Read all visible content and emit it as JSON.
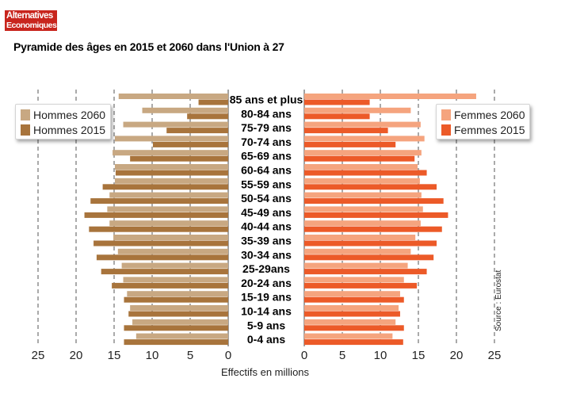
{
  "logo": {
    "line1": "Alternatives",
    "line2": "Economiques"
  },
  "title": "Pyramide des âges en 2015 et 2060 dans l'Union à 27",
  "legend_left": {
    "items": [
      "Hommes 2060",
      "Hommes 2015"
    ]
  },
  "legend_right": {
    "items": [
      "Femmes 2060",
      "Femmes 2015"
    ]
  },
  "xlabel": "Effectifs en millions",
  "source": "Source : Eurostat",
  "colors": {
    "hommes_2060": "#c8a882",
    "hommes_2015": "#a8743c",
    "femmes_2060": "#f5a47e",
    "femmes_2015": "#ec5a28"
  },
  "chart_data": {
    "type": "bar",
    "orientation": "horizontal",
    "subtype": "population-pyramid",
    "title": "Pyramide des âges en 2015 et 2060 dans l'Union à 27",
    "xlabel": "Effectifs en millions",
    "xlim": [
      0,
      25
    ],
    "x_ticks_left": [
      "25",
      "20",
      "15",
      "10",
      "5",
      "0"
    ],
    "x_ticks_right": [
      "0",
      "5",
      "10",
      "15",
      "20",
      "25"
    ],
    "grid": "dashed vertical lines at 5, 10, 15, 20, 25",
    "categories": [
      "85 ans et plus",
      "80-84 ans",
      "75-79 ans",
      "70-74 ans",
      "65-69 ans",
      "60-64 ans",
      "55-59 ans",
      "50-54 ans",
      "45-49 ans",
      "40-44 ans",
      "35-39 ans",
      "30-34 ans",
      "25-29ans",
      "20-24 ans",
      "15-19 ans",
      "10-14 ans",
      "5-9 ans",
      "0-4 ans"
    ],
    "series": [
      {
        "name": "Hommes 2060",
        "side": "left",
        "values": [
          14.4,
          11.3,
          13.8,
          14.9,
          15.2,
          14.9,
          14.9,
          15.6,
          15.9,
          15.6,
          15.1,
          14.5,
          14.0,
          13.8,
          13.3,
          12.9,
          12.6,
          12.1
        ]
      },
      {
        "name": "Hommes 2015",
        "side": "left",
        "values": [
          3.9,
          5.4,
          8.1,
          9.9,
          12.9,
          14.8,
          16.5,
          18.1,
          18.9,
          18.3,
          17.7,
          17.3,
          16.7,
          15.3,
          13.7,
          13.1,
          13.7,
          13.7
        ]
      },
      {
        "name": "Femmes 2060",
        "side": "right",
        "values": [
          22.6,
          14.0,
          15.3,
          15.8,
          15.4,
          14.9,
          15.2,
          15.4,
          15.6,
          15.3,
          14.6,
          14.0,
          13.6,
          13.1,
          12.6,
          12.4,
          12.0,
          11.6
        ]
      },
      {
        "name": "Femmes 2015",
        "side": "right",
        "values": [
          8.6,
          8.6,
          11.0,
          12.0,
          14.5,
          16.1,
          17.4,
          18.3,
          18.9,
          18.1,
          17.4,
          17.0,
          16.1,
          14.8,
          13.1,
          12.6,
          13.1,
          13.0
        ]
      }
    ]
  }
}
